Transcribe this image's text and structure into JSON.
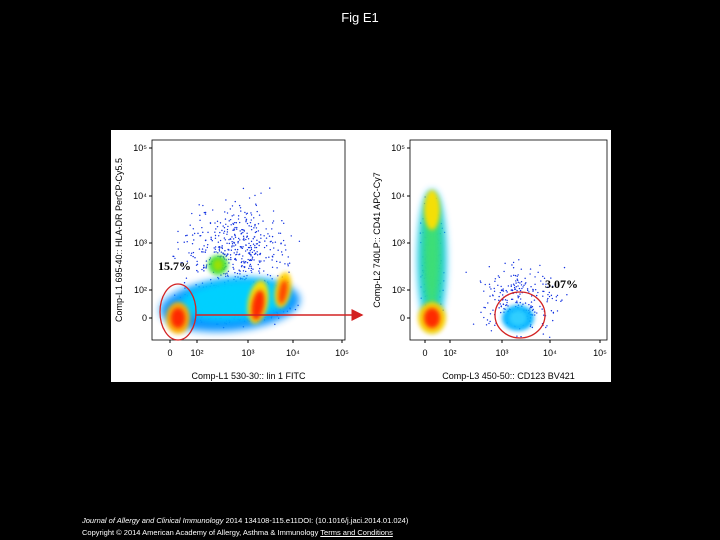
{
  "title": "Fig E1",
  "figure": {
    "panels": [
      {
        "y_axis_label": "Comp-L1 695-40:: HLA-DR PerCP-Cy5.5",
        "x_axis_label": "Comp-L1 530-30:: lin 1 FITC",
        "y_ticks": [
          "10⁵",
          "10⁴",
          "10³",
          "10²",
          "0"
        ],
        "x_ticks": [
          "0",
          "10²",
          "10³",
          "10⁴",
          "10⁵"
        ],
        "gate_label": "15.7%"
      },
      {
        "y_axis_label": "Comp-L2 740LP:: CD41 APC-Cy7",
        "x_axis_label": "Comp-L3 450-50:: CD123 BV421",
        "y_ticks": [
          "10⁵",
          "10⁴",
          "10³",
          "10²",
          "0"
        ],
        "x_ticks": [
          "0",
          "10²",
          "10³",
          "10⁴",
          "10⁵"
        ],
        "gate_label": "3.07%"
      }
    ]
  },
  "footer": {
    "journal": "Journal of Allergy and Clinical Immunology",
    "details": "2014 134108-115.e11DOI: (10.1016/j.jaci.2014.01.024)",
    "copyright": "Copyright © 2014 American Academy of Allergy, Asthma & Immunology",
    "link": "Terms and Conditions"
  }
}
